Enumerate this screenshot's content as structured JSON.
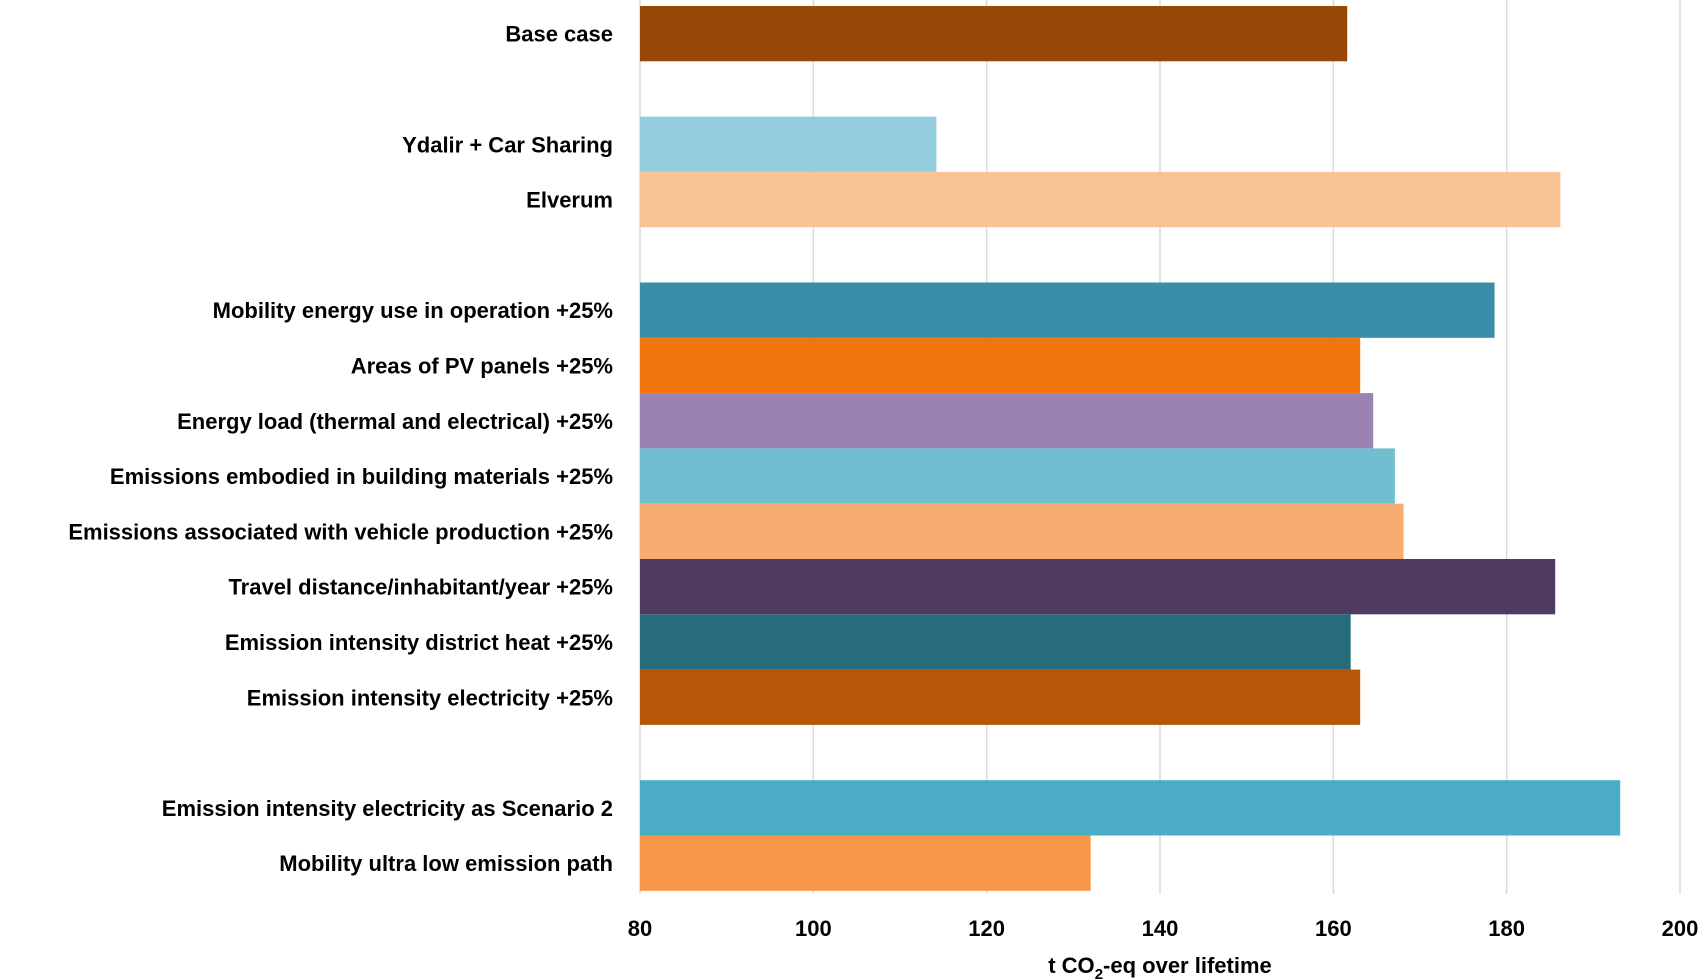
{
  "chart_data": {
    "type": "bar",
    "orientation": "horizontal",
    "xlabel_parts": [
      "t CO",
      "2",
      "-eq over lifetime"
    ],
    "xlim": [
      80,
      200
    ],
    "xticks": [
      80,
      100,
      120,
      140,
      160,
      180,
      200
    ],
    "grid": true,
    "legend": "none",
    "bars": [
      {
        "label": "Base case",
        "value": 161.6,
        "color": "#974806",
        "group": 0
      },
      {
        "label": "Ydalir + Car Sharing",
        "value": 114.2,
        "color": "#93cddd",
        "group": 1
      },
      {
        "label": "Elverum",
        "value": 186.2,
        "color": "#f9c394",
        "group": 1
      },
      {
        "label": "Mobility energy use in operation +25%",
        "value": 178.6,
        "color": "#378ea6",
        "group": 2
      },
      {
        "label": "Areas of PV panels +25%",
        "value": 163.1,
        "color": "#f0750f",
        "group": 2
      },
      {
        "label": "Energy load (thermal and electrical) +25%",
        "value": 164.6,
        "color": "#9a82b3",
        "group": 2
      },
      {
        "label": "Emissions embodied in building materials +25%",
        "value": 167.1,
        "color": "#72bed1",
        "group": 2
      },
      {
        "label": "Emissions associated with vehicle production +25%",
        "value": 168.1,
        "color": "#f7ad6f",
        "group": 2
      },
      {
        "label": "Travel distance/inhabitant/year +25%",
        "value": 185.6,
        "color": "#4f3a62",
        "group": 2
      },
      {
        "label": "Emission intensity district heat +25%",
        "value": 162.0,
        "color": "#276c7b",
        "group": 2
      },
      {
        "label": "Emission intensity electricity +25%",
        "value": 163.1,
        "color": "#b55608",
        "group": 2
      },
      {
        "label": "Emission intensity electricity as Scenario 2",
        "value": 193.1,
        "color": "#4bacc6",
        "group": 3
      },
      {
        "label": "Mobility ultra low emission path",
        "value": 132.0,
        "color": "#f79646",
        "group": 3
      }
    ]
  }
}
